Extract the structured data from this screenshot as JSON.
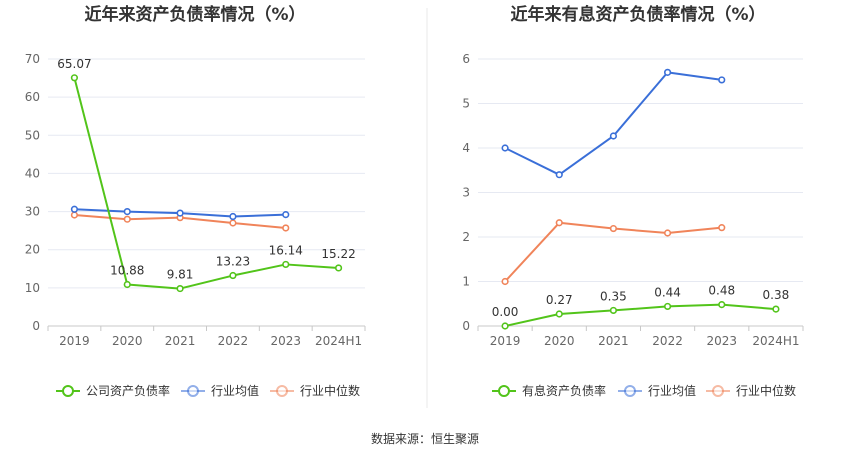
{
  "footer": {
    "source": "数据来源：恒生聚源"
  },
  "colors": {
    "company": "#52c41a",
    "industry_avg": "#3a6fd8",
    "industry_median": "#f0845a",
    "grid": "#e6e9f2",
    "axis": "#c8c8c8",
    "divider": "#e8e8e8"
  },
  "chart_data": [
    {
      "type": "line",
      "title": "近年来资产负债率情况（%）",
      "categories": [
        "2019",
        "2020",
        "2021",
        "2022",
        "2023",
        "2024H1"
      ],
      "ylim": [
        0,
        70
      ],
      "yticks": [
        0,
        10,
        20,
        30,
        40,
        50,
        60,
        70
      ],
      "grid": true,
      "legend_position": "bottom",
      "series": [
        {
          "name": "公司资产负债率",
          "color_key": "company",
          "labels": true,
          "values": [
            65.07,
            10.88,
            9.81,
            13.23,
            16.14,
            15.22
          ],
          "data_labels": [
            "65.07",
            "10.88",
            "9.81",
            "13.23",
            "16.14",
            "15.22"
          ]
        },
        {
          "name": "行业均值",
          "color_key": "industry_avg",
          "labels": false,
          "values": [
            30.6,
            30.0,
            29.6,
            28.7,
            29.2,
            null
          ]
        },
        {
          "name": "行业中位数",
          "color_key": "industry_median",
          "labels": false,
          "values": [
            29.1,
            28.0,
            28.4,
            27.0,
            25.7,
            null
          ]
        }
      ]
    },
    {
      "type": "line",
      "title": "近年来有息资产负债率情况（%）",
      "categories": [
        "2019",
        "2020",
        "2021",
        "2022",
        "2023",
        "2024H1"
      ],
      "ylim": [
        0,
        6
      ],
      "yticks": [
        0,
        1,
        2,
        3,
        4,
        5,
        6
      ],
      "grid": true,
      "legend_position": "bottom",
      "series": [
        {
          "name": "有息资产负债率",
          "color_key": "company",
          "labels": true,
          "values": [
            0.0,
            0.27,
            0.35,
            0.44,
            0.48,
            0.38
          ],
          "data_labels": [
            "0.00",
            "0.27",
            "0.35",
            "0.44",
            "0.48",
            "0.38"
          ]
        },
        {
          "name": "行业均值",
          "color_key": "industry_avg",
          "labels": false,
          "values": [
            4.0,
            3.4,
            4.27,
            5.7,
            5.53,
            null
          ]
        },
        {
          "name": "行业中位数",
          "color_key": "industry_median",
          "labels": false,
          "values": [
            1.0,
            2.32,
            2.19,
            2.09,
            2.21,
            null
          ]
        }
      ]
    }
  ]
}
